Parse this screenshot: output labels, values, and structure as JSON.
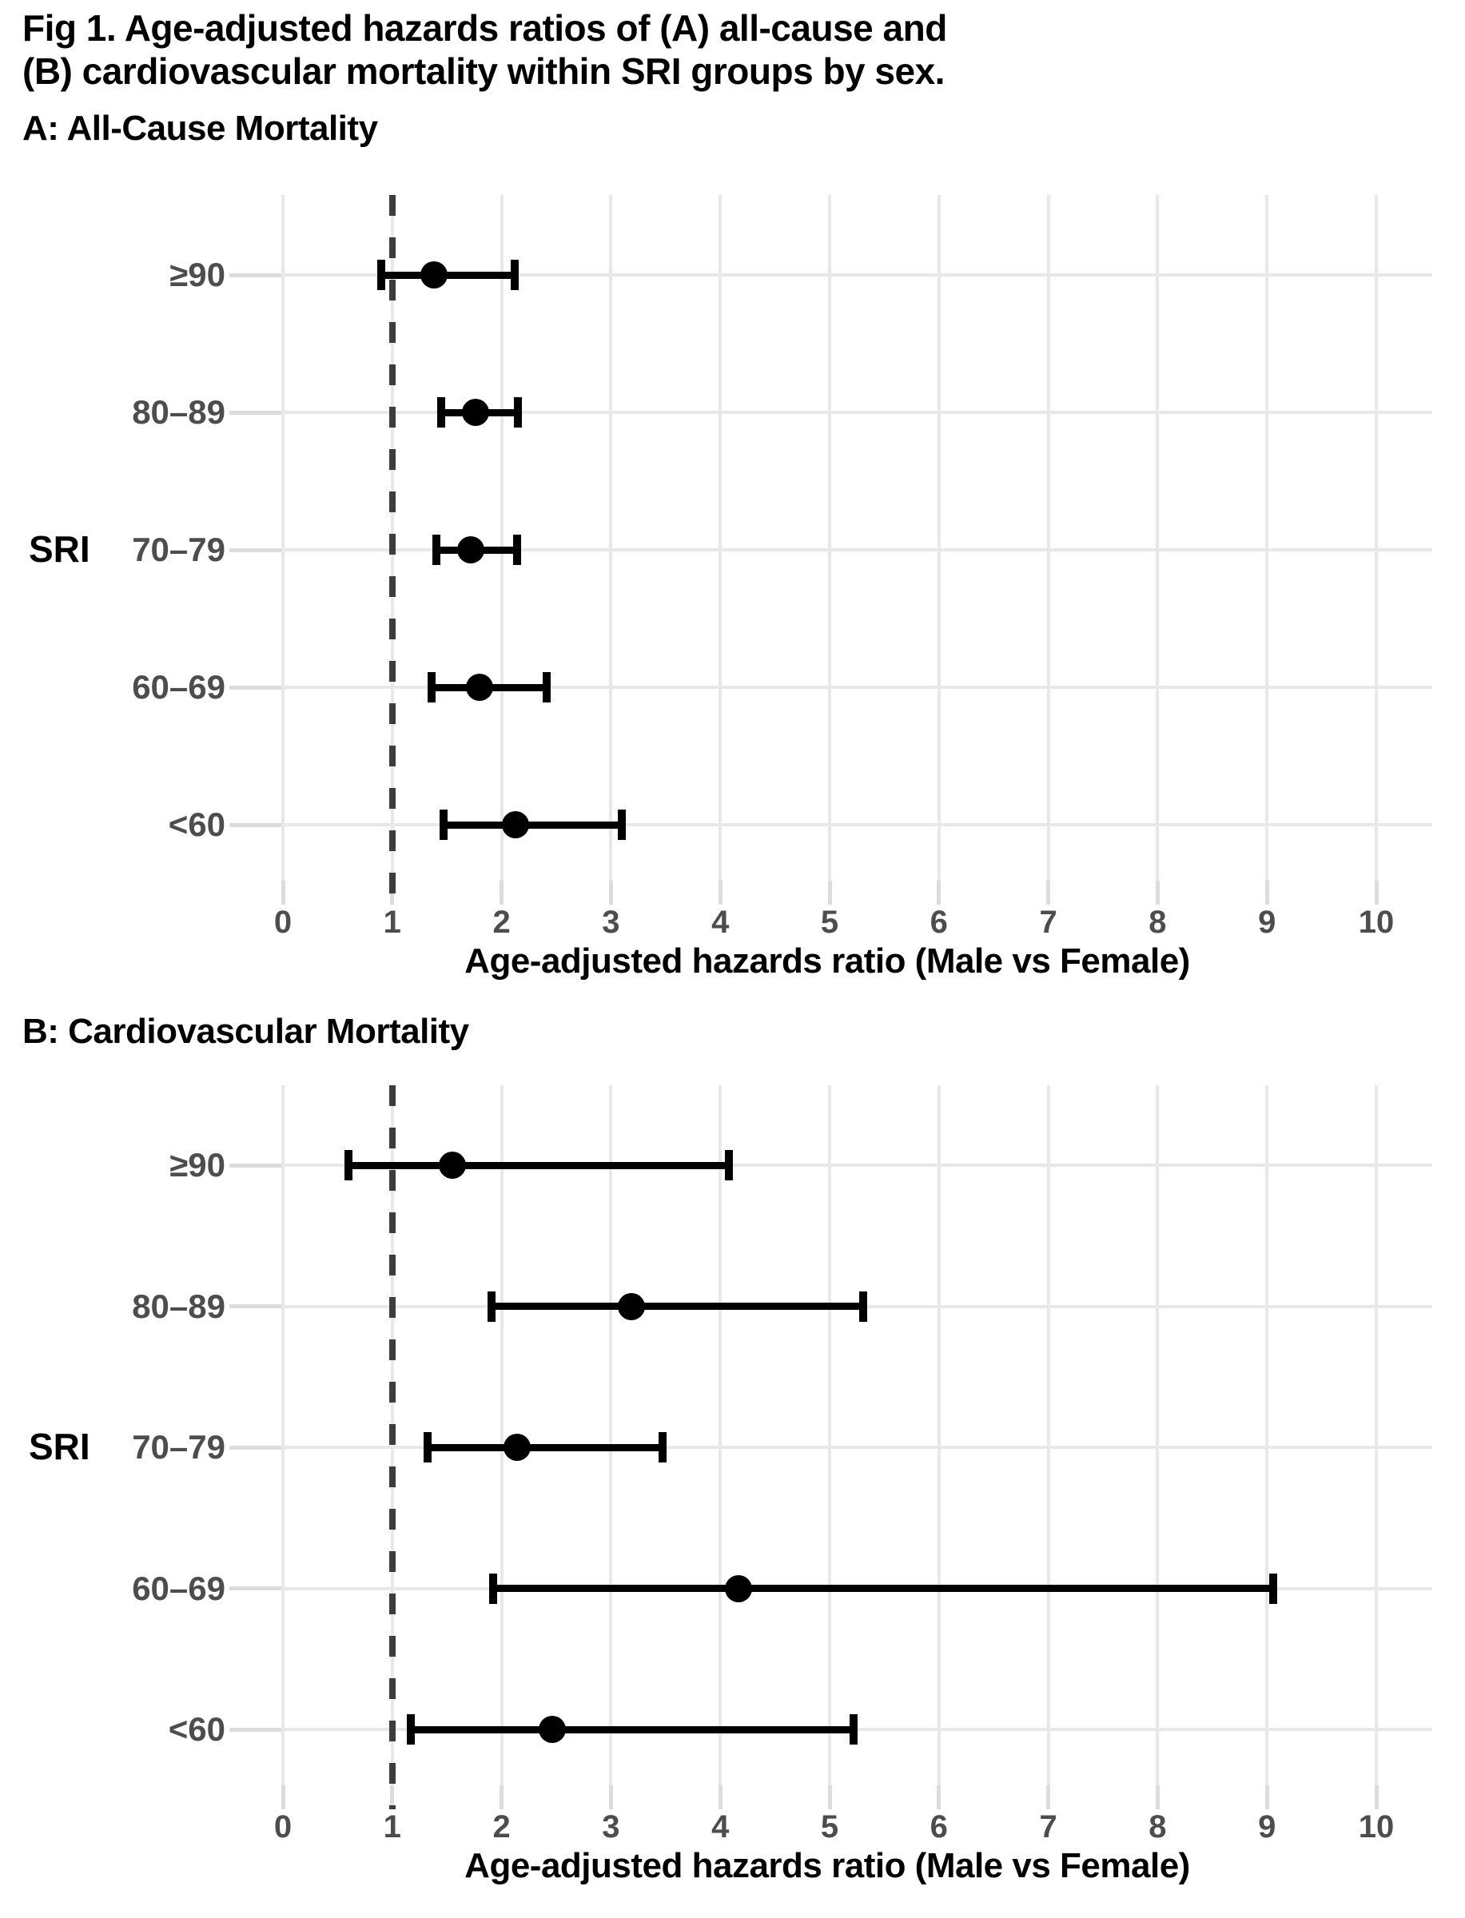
{
  "figure_title_lines": [
    "Fig 1. Age-adjusted hazards ratios of (A) all-cause and",
    "(B) cardiovascular mortality within SRI groups by sex."
  ],
  "colors": {
    "text": "#000000",
    "axis_text": "#4d4d4d",
    "gridline": "#e8e8e8",
    "tick_mark": "#dcdcdc",
    "reference_line": "#3d3d3d",
    "marker": "#000000",
    "background": "#ffffff"
  },
  "chart_data": [
    {
      "type": "scatter",
      "subtype": "forest-plot",
      "panel_label": "A: All-Cause Mortality",
      "y_axis_title": "SRI",
      "x_axis_title": "Age-adjusted hazards ratio (Male vs Female)",
      "categories": [
        "≥90",
        "80–89",
        "70–79",
        "60–69",
        "<60"
      ],
      "points": [
        {
          "category": "≥90",
          "hr": 1.38,
          "ci_low": 0.9,
          "ci_high": 2.12
        },
        {
          "category": "80–89",
          "hr": 1.76,
          "ci_low": 1.45,
          "ci_high": 2.15
        },
        {
          "category": "70–79",
          "hr": 1.72,
          "ci_low": 1.4,
          "ci_high": 2.14
        },
        {
          "category": "60–69",
          "hr": 1.8,
          "ci_low": 1.36,
          "ci_high": 2.41
        },
        {
          "category": "<60",
          "hr": 2.13,
          "ci_low": 1.47,
          "ci_high": 3.1
        }
      ],
      "x_ticks": [
        0,
        1,
        2,
        3,
        4,
        5,
        6,
        7,
        8,
        9,
        10
      ],
      "xlim": [
        0,
        10.5
      ],
      "reference_line_x": 1,
      "grid": true,
      "legend": "none"
    },
    {
      "type": "scatter",
      "subtype": "forest-plot",
      "panel_label": "B: Cardiovascular Mortality",
      "y_axis_title": "SRI",
      "x_axis_title": "Age-adjusted hazards ratio (Male vs Female)",
      "categories": [
        "≥90",
        "80–89",
        "70–79",
        "60–69",
        "<60"
      ],
      "points": [
        {
          "category": "≥90",
          "hr": 1.55,
          "ci_low": 0.6,
          "ci_high": 4.08
        },
        {
          "category": "80–89",
          "hr": 3.19,
          "ci_low": 1.91,
          "ci_high": 5.31
        },
        {
          "category": "70–79",
          "hr": 2.14,
          "ci_low": 1.32,
          "ci_high": 3.47
        },
        {
          "category": "60–69",
          "hr": 4.17,
          "ci_low": 1.92,
          "ci_high": 9.06
        },
        {
          "category": "<60",
          "hr": 2.46,
          "ci_low": 1.17,
          "ci_high": 5.22
        }
      ],
      "x_ticks": [
        0,
        1,
        2,
        3,
        4,
        5,
        6,
        7,
        8,
        9,
        10
      ],
      "xlim": [
        0,
        10.5
      ],
      "reference_line_x": 1,
      "grid": true,
      "legend": "none"
    }
  ]
}
